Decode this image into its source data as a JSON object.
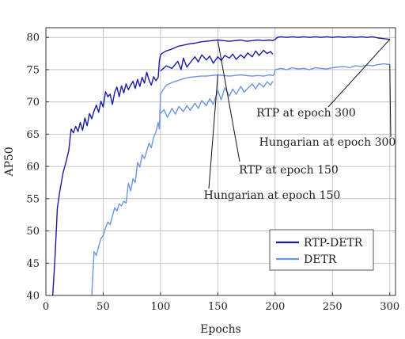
{
  "chart_data": {
    "type": "line",
    "xlabel": "Epochs",
    "ylabel": "AP50",
    "xlim": [
      0,
      305
    ],
    "ylim": [
      40,
      81.5
    ],
    "xticks": [
      0,
      50,
      100,
      150,
      200,
      250,
      300
    ],
    "yticks": [
      40,
      45,
      50,
      55,
      60,
      65,
      70,
      75,
      80
    ],
    "grid": true,
    "legend_position": "bottom-right",
    "series": [
      {
        "name": "RTP-DETR",
        "color": "#1a1aa8",
        "x": [
          6,
          8,
          10,
          12,
          15,
          18,
          20,
          22,
          24,
          26,
          28,
          30,
          32,
          34,
          36,
          38,
          40,
          42,
          44,
          46,
          48,
          50,
          52,
          54,
          56,
          58,
          60,
          62,
          64,
          66,
          68,
          70,
          72,
          74,
          76,
          78,
          80,
          82,
          84,
          86,
          88,
          90,
          92,
          94,
          96,
          98,
          99,
          100,
          102,
          105,
          110,
          115,
          120,
          125,
          130,
          135,
          140,
          145,
          150,
          155,
          160,
          165,
          170,
          175,
          180,
          185,
          190,
          195,
          198,
          199,
          200,
          202,
          205,
          210,
          215,
          220,
          225,
          230,
          235,
          240,
          245,
          250,
          255,
          260,
          265,
          270,
          275,
          280,
          285,
          290,
          295,
          300
        ],
        "values": [
          40,
          46,
          53.5,
          56,
          59,
          61,
          62.5,
          65.8,
          65.2,
          66.2,
          65.4,
          66.8,
          65.6,
          67.5,
          66.3,
          68.2,
          67.4,
          68.6,
          69.5,
          68.4,
          70.1,
          69.2,
          71.6,
          70.8,
          71.2,
          69.6,
          71.5,
          72.3,
          70.8,
          72.5,
          71.4,
          72.8,
          71.9,
          72.6,
          73.2,
          72.1,
          73.5,
          72.4,
          73.8,
          72.9,
          74.6,
          73.4,
          72.6,
          73.9,
          73.3,
          73.8,
          76.4,
          77.3,
          77.6,
          77.9,
          78.2,
          78.6,
          78.8,
          79.0,
          79.1,
          79.3,
          79.4,
          79.5,
          79.6,
          79.5,
          79.4,
          79.5,
          79.6,
          79.4,
          79.5,
          79.6,
          79.5,
          79.6,
          79.5,
          79.6,
          79.7,
          80.0,
          80.1,
          80.0,
          80.1,
          80.0,
          80.1,
          80.0,
          80.1,
          80.0,
          80.1,
          80.0,
          80.1,
          80.0,
          80.1,
          80.0,
          80.1,
          80.0,
          80.1,
          79.9,
          79.8,
          79.7
        ]
      },
      {
        "name": "RTP-DETR",
        "color": "#1a1aa8",
        "x": [
          100,
          105,
          110,
          115,
          118,
          120,
          123,
          126,
          130,
          133,
          136,
          140,
          143,
          146,
          150,
          153,
          156,
          160,
          163,
          166,
          170,
          173,
          176,
          180,
          183,
          186,
          190,
          193,
          196,
          198
        ],
        "values": [
          74.8,
          75.6,
          75.2,
          76.3,
          75.0,
          76.8,
          75.4,
          76.1,
          77.0,
          76.2,
          77.3,
          76.5,
          77.1,
          76.0,
          77.0,
          76.4,
          77.2,
          76.8,
          77.4,
          76.6,
          77.3,
          76.8,
          77.6,
          77.0,
          77.9,
          77.2,
          78.0,
          77.5,
          77.8,
          77.4
        ]
      },
      {
        "name": "DETR",
        "color": "#6b96e0",
        "x": [
          40,
          42,
          44,
          46,
          48,
          50,
          52,
          54,
          56,
          58,
          60,
          62,
          64,
          66,
          68,
          70,
          72,
          74,
          76,
          78,
          80,
          82,
          84,
          86,
          88,
          90,
          92,
          94,
          96,
          98,
          99,
          100,
          102,
          105,
          110,
          115,
          120,
          125,
          130,
          135,
          140,
          145,
          150,
          155,
          160,
          165,
          170,
          175,
          180,
          185,
          190,
          195,
          198,
          199,
          200,
          205,
          210,
          215,
          220,
          225,
          230,
          235,
          240,
          245,
          250,
          255,
          260,
          265,
          270,
          275,
          280,
          285,
          290,
          295,
          300
        ],
        "values": [
          40,
          46.8,
          46.2,
          47.6,
          48.8,
          49.3,
          50.5,
          51.4,
          51.0,
          52.3,
          53.6,
          53.1,
          54.2,
          53.9,
          54.6,
          54.3,
          57.4,
          56.2,
          58.1,
          57.5,
          60.6,
          59.9,
          61.8,
          61.2,
          62.4,
          63.6,
          62.9,
          64.5,
          65.3,
          66.8,
          65.8,
          71.2,
          71.8,
          72.6,
          73.0,
          73.3,
          73.6,
          73.8,
          73.9,
          74.0,
          74.0,
          74.1,
          74.2,
          74.1,
          74.0,
          74.1,
          74.2,
          74.1,
          74.0,
          74.1,
          74.0,
          74.2,
          74.1,
          74.2,
          75.0,
          75.2,
          75.0,
          75.3,
          75.1,
          75.2,
          75.0,
          75.3,
          75.2,
          75.1,
          75.3,
          75.4,
          75.5,
          75.3,
          75.6,
          75.5,
          75.7,
          75.6,
          75.8,
          75.9,
          75.8
        ]
      },
      {
        "name": "DETR",
        "color": "#6b96e0",
        "x": [
          100,
          103,
          106,
          110,
          113,
          116,
          120,
          123,
          126,
          130,
          133,
          136,
          140,
          143,
          146,
          150,
          153,
          156,
          160,
          163,
          166,
          170,
          173,
          176,
          180,
          183,
          186,
          190,
          193,
          196,
          198
        ],
        "values": [
          68.2,
          68.8,
          67.6,
          69.0,
          68.1,
          69.3,
          68.5,
          69.4,
          68.7,
          69.8,
          69.0,
          70.2,
          69.4,
          70.5,
          69.6,
          71.8,
          70.3,
          72.2,
          70.9,
          72.0,
          71.2,
          72.4,
          71.5,
          72.1,
          72.8,
          72.0,
          72.9,
          72.3,
          73.1,
          72.6,
          73.2
        ]
      }
    ],
    "legend": [
      {
        "label": "RTP-DETR",
        "color": "#1a1aa8"
      },
      {
        "label": "DETR",
        "color": "#6b96e0"
      }
    ],
    "annotations": [
      {
        "text": "RTP at epoch 300",
        "x": 300,
        "y": 79.7
      },
      {
        "text": "Hungarian at epoch 300",
        "x": 300,
        "y": 75.8
      },
      {
        "text": "RTP at epoch 150",
        "x": 150,
        "y": 79.5
      },
      {
        "text": "Hungarian at epoch 150",
        "x": 150,
        "y": 74.2
      }
    ]
  }
}
